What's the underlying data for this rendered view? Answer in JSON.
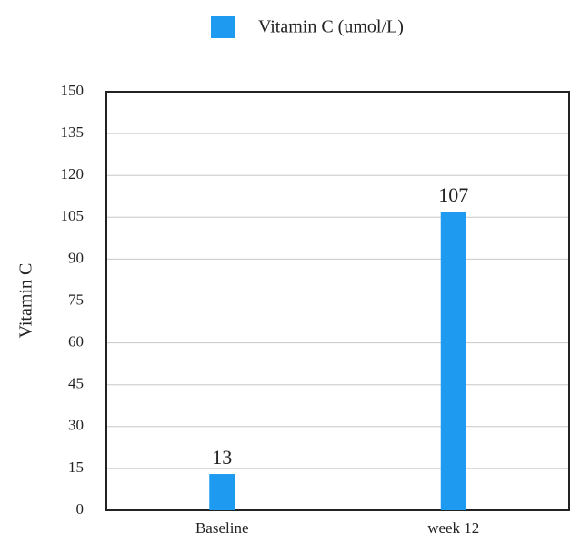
{
  "chart_data": {
    "type": "bar",
    "y_label": "Vitamin C",
    "categories": [
      "Baseline",
      "week 12"
    ],
    "series": [
      {
        "name": "Vitamin C (umol/L)",
        "color": "#1e9af0",
        "values": [
          13,
          107
        ]
      }
    ],
    "ylim": [
      0,
      150
    ],
    "yticks": [
      0,
      15,
      30,
      45,
      60,
      75,
      90,
      105,
      120,
      135,
      150
    ],
    "grid": true,
    "legend": "top"
  }
}
